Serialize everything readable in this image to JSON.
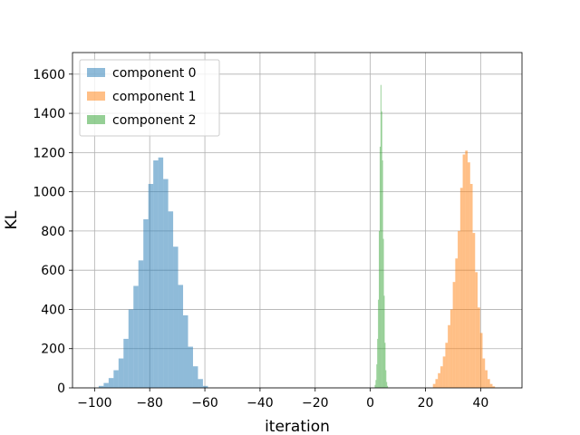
{
  "chart_data": {
    "type": "bar",
    "title": "",
    "xlabel": "iteration",
    "ylabel": "KL",
    "xlim": [
      -108,
      55
    ],
    "ylim": [
      0,
      1710
    ],
    "xticks": [
      -100,
      -80,
      -60,
      -40,
      -20,
      0,
      20,
      40
    ],
    "xtick_labels": [
      "−100",
      "−80",
      "−60",
      "−40",
      "−20",
      "0",
      "20",
      "40"
    ],
    "yticks": [
      0,
      200,
      400,
      600,
      800,
      1000,
      1200,
      1400,
      1600
    ],
    "ytick_labels": [
      "0",
      "200",
      "400",
      "600",
      "800",
      "1000",
      "1200",
      "1400",
      "1600"
    ],
    "grid": true,
    "legend_position": "top-left",
    "series": [
      {
        "name": "component 0",
        "color": "#1f77b4",
        "alpha": 0.5,
        "bins": [
          [
            -98.5,
            -96.7,
            10
          ],
          [
            -96.7,
            -94.9,
            25
          ],
          [
            -94.9,
            -93.1,
            50
          ],
          [
            -93.1,
            -91.3,
            90
          ],
          [
            -91.3,
            -89.5,
            150
          ],
          [
            -89.5,
            -87.7,
            250
          ],
          [
            -87.7,
            -85.9,
            400
          ],
          [
            -85.9,
            -84.1,
            520
          ],
          [
            -84.1,
            -82.3,
            650
          ],
          [
            -82.3,
            -80.5,
            860
          ],
          [
            -80.5,
            -78.7,
            1040
          ],
          [
            -78.7,
            -76.9,
            1160
          ],
          [
            -76.9,
            -75.1,
            1175
          ],
          [
            -75.1,
            -73.3,
            1065
          ],
          [
            -73.3,
            -71.5,
            900
          ],
          [
            -71.5,
            -69.7,
            720
          ],
          [
            -69.7,
            -67.9,
            525
          ],
          [
            -67.9,
            -66.1,
            370
          ],
          [
            -66.1,
            -64.3,
            210
          ],
          [
            -64.3,
            -62.5,
            110
          ],
          [
            -62.5,
            -60.7,
            45
          ],
          [
            -60.7,
            -58.9,
            10
          ]
        ]
      },
      {
        "name": "component 1",
        "color": "#ff7f0e",
        "alpha": 0.5,
        "bins": [
          [
            22.7,
            23.6,
            20
          ],
          [
            23.6,
            24.5,
            45
          ],
          [
            24.5,
            25.4,
            75
          ],
          [
            25.4,
            26.3,
            110
          ],
          [
            26.3,
            27.2,
            160
          ],
          [
            27.2,
            28.1,
            230
          ],
          [
            28.1,
            29.0,
            320
          ],
          [
            29.0,
            29.9,
            400
          ],
          [
            29.9,
            30.8,
            540
          ],
          [
            30.8,
            31.7,
            660
          ],
          [
            31.7,
            32.6,
            800
          ],
          [
            32.6,
            33.5,
            1020
          ],
          [
            33.5,
            34.4,
            1190
          ],
          [
            34.4,
            35.3,
            1210
          ],
          [
            35.3,
            36.2,
            1150
          ],
          [
            36.2,
            37.1,
            1040
          ],
          [
            37.1,
            38.0,
            790
          ],
          [
            38.0,
            38.9,
            590
          ],
          [
            38.9,
            39.8,
            410
          ],
          [
            39.8,
            40.7,
            280
          ],
          [
            40.7,
            41.6,
            150
          ],
          [
            41.6,
            42.5,
            90
          ],
          [
            42.5,
            43.4,
            45
          ],
          [
            43.4,
            44.3,
            20
          ],
          [
            44.3,
            45.2,
            8
          ]
        ]
      },
      {
        "name": "component 2",
        "color": "#2ca02c",
        "alpha": 0.5,
        "bins": [
          [
            1.6,
            1.9,
            15
          ],
          [
            1.9,
            2.2,
            40
          ],
          [
            2.2,
            2.5,
            120
          ],
          [
            2.5,
            2.8,
            250
          ],
          [
            2.8,
            3.1,
            450
          ],
          [
            3.1,
            3.4,
            800
          ],
          [
            3.4,
            3.7,
            1230
          ],
          [
            3.7,
            4.0,
            1545
          ],
          [
            4.0,
            4.3,
            1410
          ],
          [
            4.3,
            4.6,
            1160
          ],
          [
            4.6,
            4.9,
            760
          ],
          [
            4.9,
            5.2,
            470
          ],
          [
            5.2,
            5.5,
            230
          ],
          [
            5.5,
            5.8,
            90
          ],
          [
            5.8,
            6.1,
            30
          ],
          [
            6.1,
            6.4,
            10
          ]
        ]
      }
    ]
  }
}
